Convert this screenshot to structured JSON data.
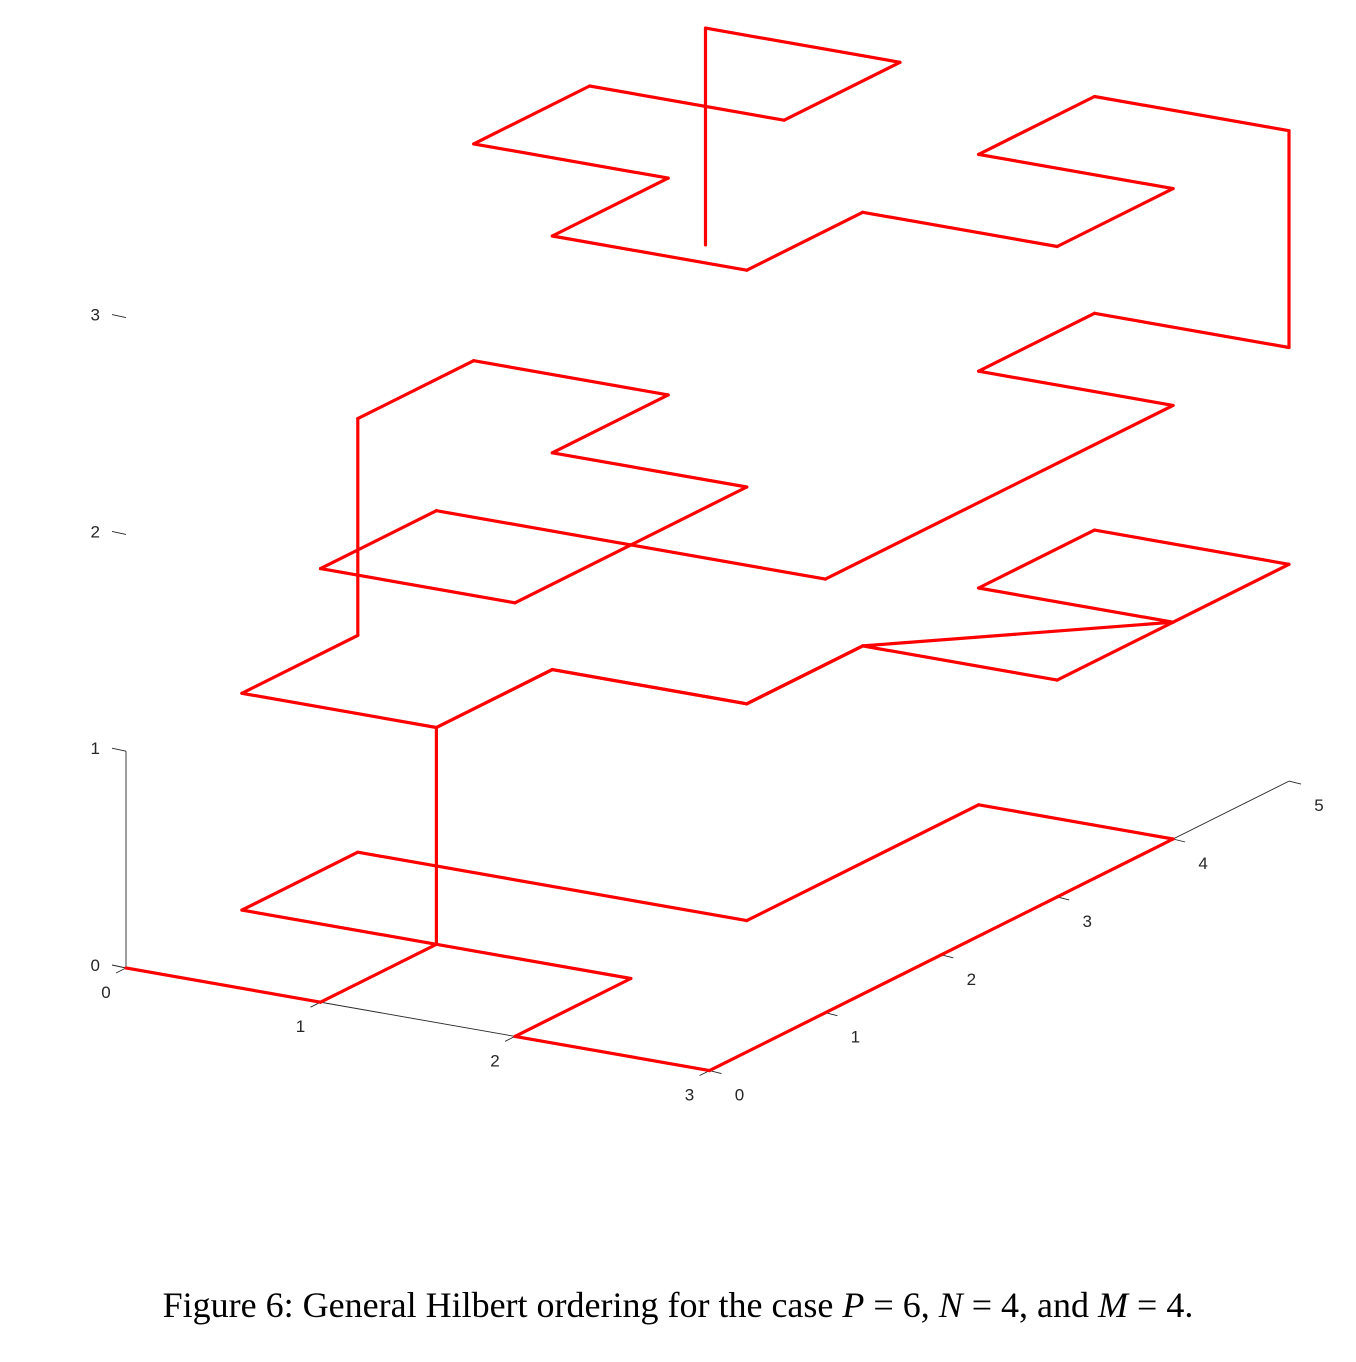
{
  "chart_data": {
    "type": "line3d",
    "title": "",
    "xlabel": "",
    "ylabel": "",
    "zlabel": "",
    "xlim": [
      0,
      3
    ],
    "ylim": [
      0,
      5
    ],
    "zlim": [
      0,
      3
    ],
    "x_ticks": [
      "0",
      "1",
      "2",
      "3"
    ],
    "y_ticks": [
      "0",
      "1",
      "2",
      "3",
      "4",
      "5"
    ],
    "z_ticks": [
      "0",
      "1",
      "2",
      "3"
    ],
    "grid": false,
    "box": false,
    "series": [
      {
        "color": "#ff0000",
        "points": [
          [
            0,
            0,
            0
          ],
          [
            1,
            0,
            0
          ],
          [
            1,
            1,
            0
          ],
          [
            0,
            1,
            0
          ],
          [
            0,
            2,
            0
          ],
          [
            2,
            2,
            0
          ],
          [
            2,
            3,
            0
          ],
          [
            2,
            4,
            0
          ],
          [
            3,
            4,
            0
          ],
          [
            3,
            3,
            0
          ],
          [
            3,
            2,
            0
          ],
          [
            3,
            1,
            0
          ],
          [
            3,
            0,
            0
          ],
          [
            2,
            0,
            0
          ],
          [
            2,
            1,
            0
          ],
          [
            1,
            1,
            0
          ],
          [
            1,
            1,
            1
          ],
          [
            1,
            2,
            1
          ],
          [
            2,
            2,
            1
          ],
          [
            2,
            3,
            1
          ],
          [
            3,
            3,
            1
          ],
          [
            3,
            4,
            1
          ],
          [
            2,
            4,
            1
          ],
          [
            2,
            5,
            1
          ],
          [
            3,
            5,
            1
          ],
          [
            3,
            4,
            1
          ],
          [
            2,
            3,
            1
          ],
          [
            2,
            2,
            1
          ],
          [
            1,
            2,
            1
          ],
          [
            1,
            1,
            1
          ],
          [
            0,
            1,
            1
          ],
          [
            0,
            2,
            1
          ],
          [
            0,
            2,
            2
          ],
          [
            0,
            3,
            2
          ],
          [
            1,
            3,
            2
          ],
          [
            1,
            2,
            2
          ],
          [
            2,
            2,
            2
          ],
          [
            2,
            1,
            2
          ],
          [
            1,
            1,
            2
          ],
          [
            1,
            0,
            2
          ],
          [
            2,
            0,
            2
          ],
          [
            2,
            1,
            2
          ],
          [
            3,
            1,
            2
          ],
          [
            3,
            2,
            2
          ],
          [
            3,
            3,
            2
          ],
          [
            3,
            4,
            2
          ],
          [
            2,
            4,
            2
          ],
          [
            2,
            5,
            2
          ],
          [
            3,
            5,
            2
          ],
          [
            3,
            5,
            3
          ],
          [
            2,
            5,
            3
          ],
          [
            2,
            4,
            3
          ],
          [
            3,
            4,
            3
          ],
          [
            3,
            3,
            3
          ],
          [
            2,
            3,
            3
          ],
          [
            2,
            2,
            3
          ],
          [
            1,
            2,
            3
          ],
          [
            1,
            3,
            3
          ],
          [
            0,
            3,
            3
          ],
          [
            0,
            4,
            3
          ],
          [
            1,
            4,
            3
          ],
          [
            1,
            5,
            3
          ],
          [
            0,
            5,
            3
          ],
          [
            0,
            5,
            2
          ]
        ]
      }
    ]
  },
  "caption": {
    "prefix": "Figure 6: General Hilbert ordering for the case ",
    "var_p": "P",
    "eq_p": " = 6, ",
    "var_n": "N",
    "eq_n": " = 4, and ",
    "var_m": "M",
    "eq_m": " = 4."
  }
}
